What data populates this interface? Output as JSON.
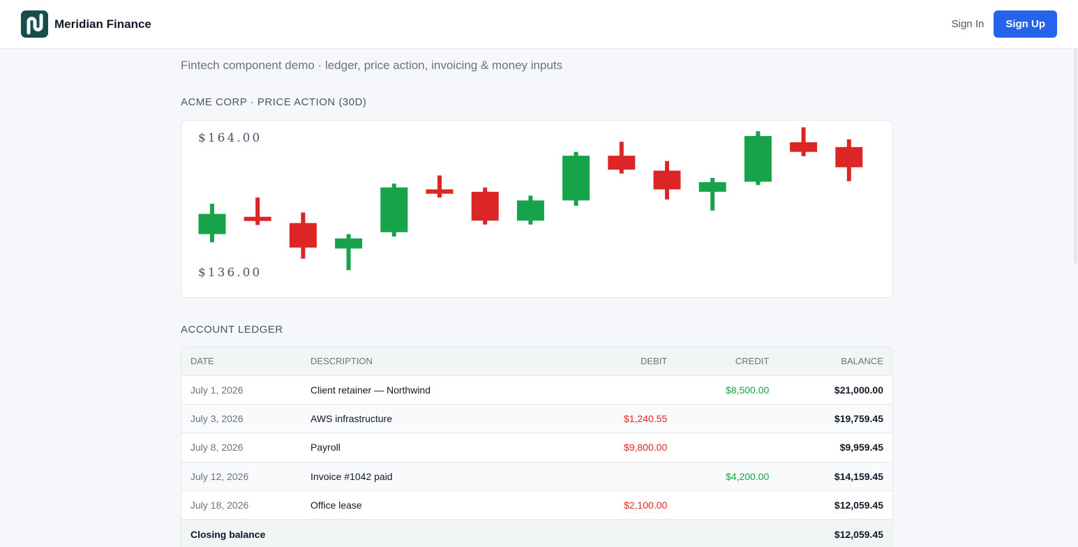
{
  "header": {
    "brand_name": "Meridian Finance",
    "sign_in_label": "Sign In",
    "sign_up_label": "Sign Up"
  },
  "page": {
    "subtitle": "Fintech component demo · ledger, price action, invoicing & money inputs"
  },
  "price_section": {
    "title": "ACME CORP · PRICE ACTION (30D)"
  },
  "chart_data": {
    "type": "candlestick",
    "ylim": [
      136,
      164
    ],
    "y_max_label": "$164.00",
    "y_min_label": "$136.00",
    "up_color": "#16a34a",
    "down_color": "#dc2626",
    "candles": [
      {
        "open": 143.9,
        "close": 148.1,
        "high": 150.2,
        "low": 142.2
      },
      {
        "open": 147.5,
        "close": 146.7,
        "high": 151.5,
        "low": 145.8
      },
      {
        "open": 146.2,
        "close": 141.1,
        "high": 148.4,
        "low": 138.8
      },
      {
        "open": 140.9,
        "close": 143.0,
        "high": 143.9,
        "low": 136.4
      },
      {
        "open": 144.3,
        "close": 153.6,
        "high": 154.4,
        "low": 143.4
      },
      {
        "open": 153.2,
        "close": 152.3,
        "high": 156.1,
        "low": 151.5
      },
      {
        "open": 152.7,
        "close": 146.7,
        "high": 153.6,
        "low": 145.9
      },
      {
        "open": 146.7,
        "close": 150.9,
        "high": 151.9,
        "low": 145.9
      },
      {
        "open": 150.9,
        "close": 160.2,
        "high": 161.0,
        "low": 149.8
      },
      {
        "open": 160.2,
        "close": 157.3,
        "high": 163.1,
        "low": 156.5
      },
      {
        "open": 157.1,
        "close": 153.2,
        "high": 159.1,
        "low": 151.1
      },
      {
        "open": 152.7,
        "close": 154.7,
        "high": 155.6,
        "low": 148.8
      },
      {
        "open": 154.8,
        "close": 164.3,
        "high": 165.3,
        "low": 154.1
      },
      {
        "open": 163.0,
        "close": 161.0,
        "high": 166.1,
        "low": 160.1
      },
      {
        "open": 162.0,
        "close": 157.8,
        "high": 163.6,
        "low": 154.9
      }
    ]
  },
  "ledger_section": {
    "title": "ACCOUNT LEDGER"
  },
  "ledger": {
    "headers": {
      "date": "DATE",
      "description": "DESCRIPTION",
      "debit": "DEBIT",
      "credit": "CREDIT",
      "balance": "BALANCE"
    },
    "rows": [
      {
        "date": "July 1, 2026",
        "description": "Client retainer — Northwind",
        "debit": "",
        "credit": "$8,500.00",
        "balance": "$21,000.00"
      },
      {
        "date": "July 3, 2026",
        "description": "AWS infrastructure",
        "debit": "$1,240.55",
        "credit": "",
        "balance": "$19,759.45"
      },
      {
        "date": "July 8, 2026",
        "description": "Payroll",
        "debit": "$9,800.00",
        "credit": "",
        "balance": "$9,959.45"
      },
      {
        "date": "July 12, 2026",
        "description": "Invoice #1042 paid",
        "debit": "",
        "credit": "$4,200.00",
        "balance": "$14,159.45"
      },
      {
        "date": "July 18, 2026",
        "description": "Office lease",
        "debit": "$2,100.00",
        "credit": "",
        "balance": "$12,059.45"
      }
    ],
    "footer": {
      "label": "Closing balance",
      "balance": "$12,059.45"
    }
  }
}
